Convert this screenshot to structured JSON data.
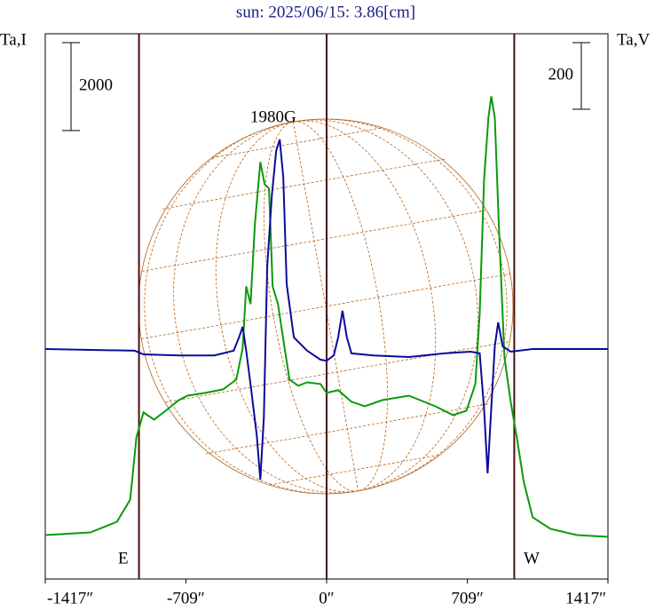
{
  "chart_data": {
    "type": "line",
    "title": "sun: 2025/06/15: 3.86[cm]",
    "y_label": "Ta,I",
    "y2_label": "Ta,V",
    "annotation": "1980G",
    "limb_labels": [
      "E",
      "W"
    ],
    "limb_x": [
      -945,
      945
    ],
    "center_x": 0,
    "y_scale_bar": 2000,
    "y2_scale_bar": 200,
    "xlim": [
      -1417,
      1417
    ],
    "ylim": [
      -1000,
      11400
    ],
    "y2lim": [
      -690,
      946
    ],
    "xticks": [
      {
        "value": -1417,
        "label": "-1417″"
      },
      {
        "value": -709,
        "label": "-709″"
      },
      {
        "value": 0,
        "label": "0″"
      },
      {
        "value": 709,
        "label": "709″"
      },
      {
        "value": 1417,
        "label": "1417″"
      }
    ],
    "series": [
      {
        "color": "#0a9a0a",
        "x": [
          -1417,
          -1190,
          -1056,
          -989,
          -958,
          -922,
          -869,
          -811,
          -744,
          -700,
          -610,
          -521,
          -455,
          -423,
          -405,
          -383,
          -361,
          -334,
          -312,
          -290,
          -272,
          -245,
          -218,
          -187,
          -143,
          -98,
          -31,
          0,
          58,
          125,
          192,
          281,
          414,
          548,
          637,
          704,
          749,
          771,
          793,
          815,
          829,
          847,
          869,
          896,
          927,
          958,
          993,
          1038,
          1127,
          1261,
          1417
        ],
        "values": [
          0,
          61,
          303,
          808,
          2222,
          2788,
          2626,
          2828,
          3070,
          3171,
          3232,
          3313,
          3535,
          4242,
          5656,
          5252,
          7070,
          8484,
          7979,
          7878,
          5656,
          5252,
          4444,
          3535,
          3394,
          3474,
          3434,
          3232,
          3293,
          3030,
          2929,
          3070,
          3171,
          2929,
          2727,
          2828,
          3434,
          5050,
          8080,
          9494,
          9979,
          9494,
          6868,
          4040,
          3030,
          2222,
          1212,
          404,
          141,
          0,
          -40
        ]
      },
      {
        "color": "#0a0a9a",
        "axis": "y2",
        "x": [
          -1417,
          -967,
          -922,
          -744,
          -566,
          -468,
          -441,
          -423,
          -405,
          -379,
          -352,
          -334,
          -316,
          -299,
          -276,
          -254,
          -236,
          -218,
          -201,
          -165,
          -98,
          -31,
          0,
          36,
          58,
          80,
          102,
          125,
          236,
          414,
          593,
          726,
          771,
          793,
          811,
          829,
          847,
          864,
          887,
          927,
          1038,
          1417
        ],
        "values": [
          0,
          -5,
          -16,
          -19,
          -19,
          -5,
          35,
          67,
          -5,
          -125,
          -259,
          -392,
          -205,
          248,
          461,
          595,
          629,
          515,
          195,
          35,
          -5,
          -32,
          -35,
          -19,
          35,
          115,
          35,
          -13,
          -19,
          -24,
          -13,
          -8,
          -13,
          -179,
          -373,
          -179,
          8,
          80,
          8,
          -8,
          0,
          0
        ]
      }
    ]
  }
}
